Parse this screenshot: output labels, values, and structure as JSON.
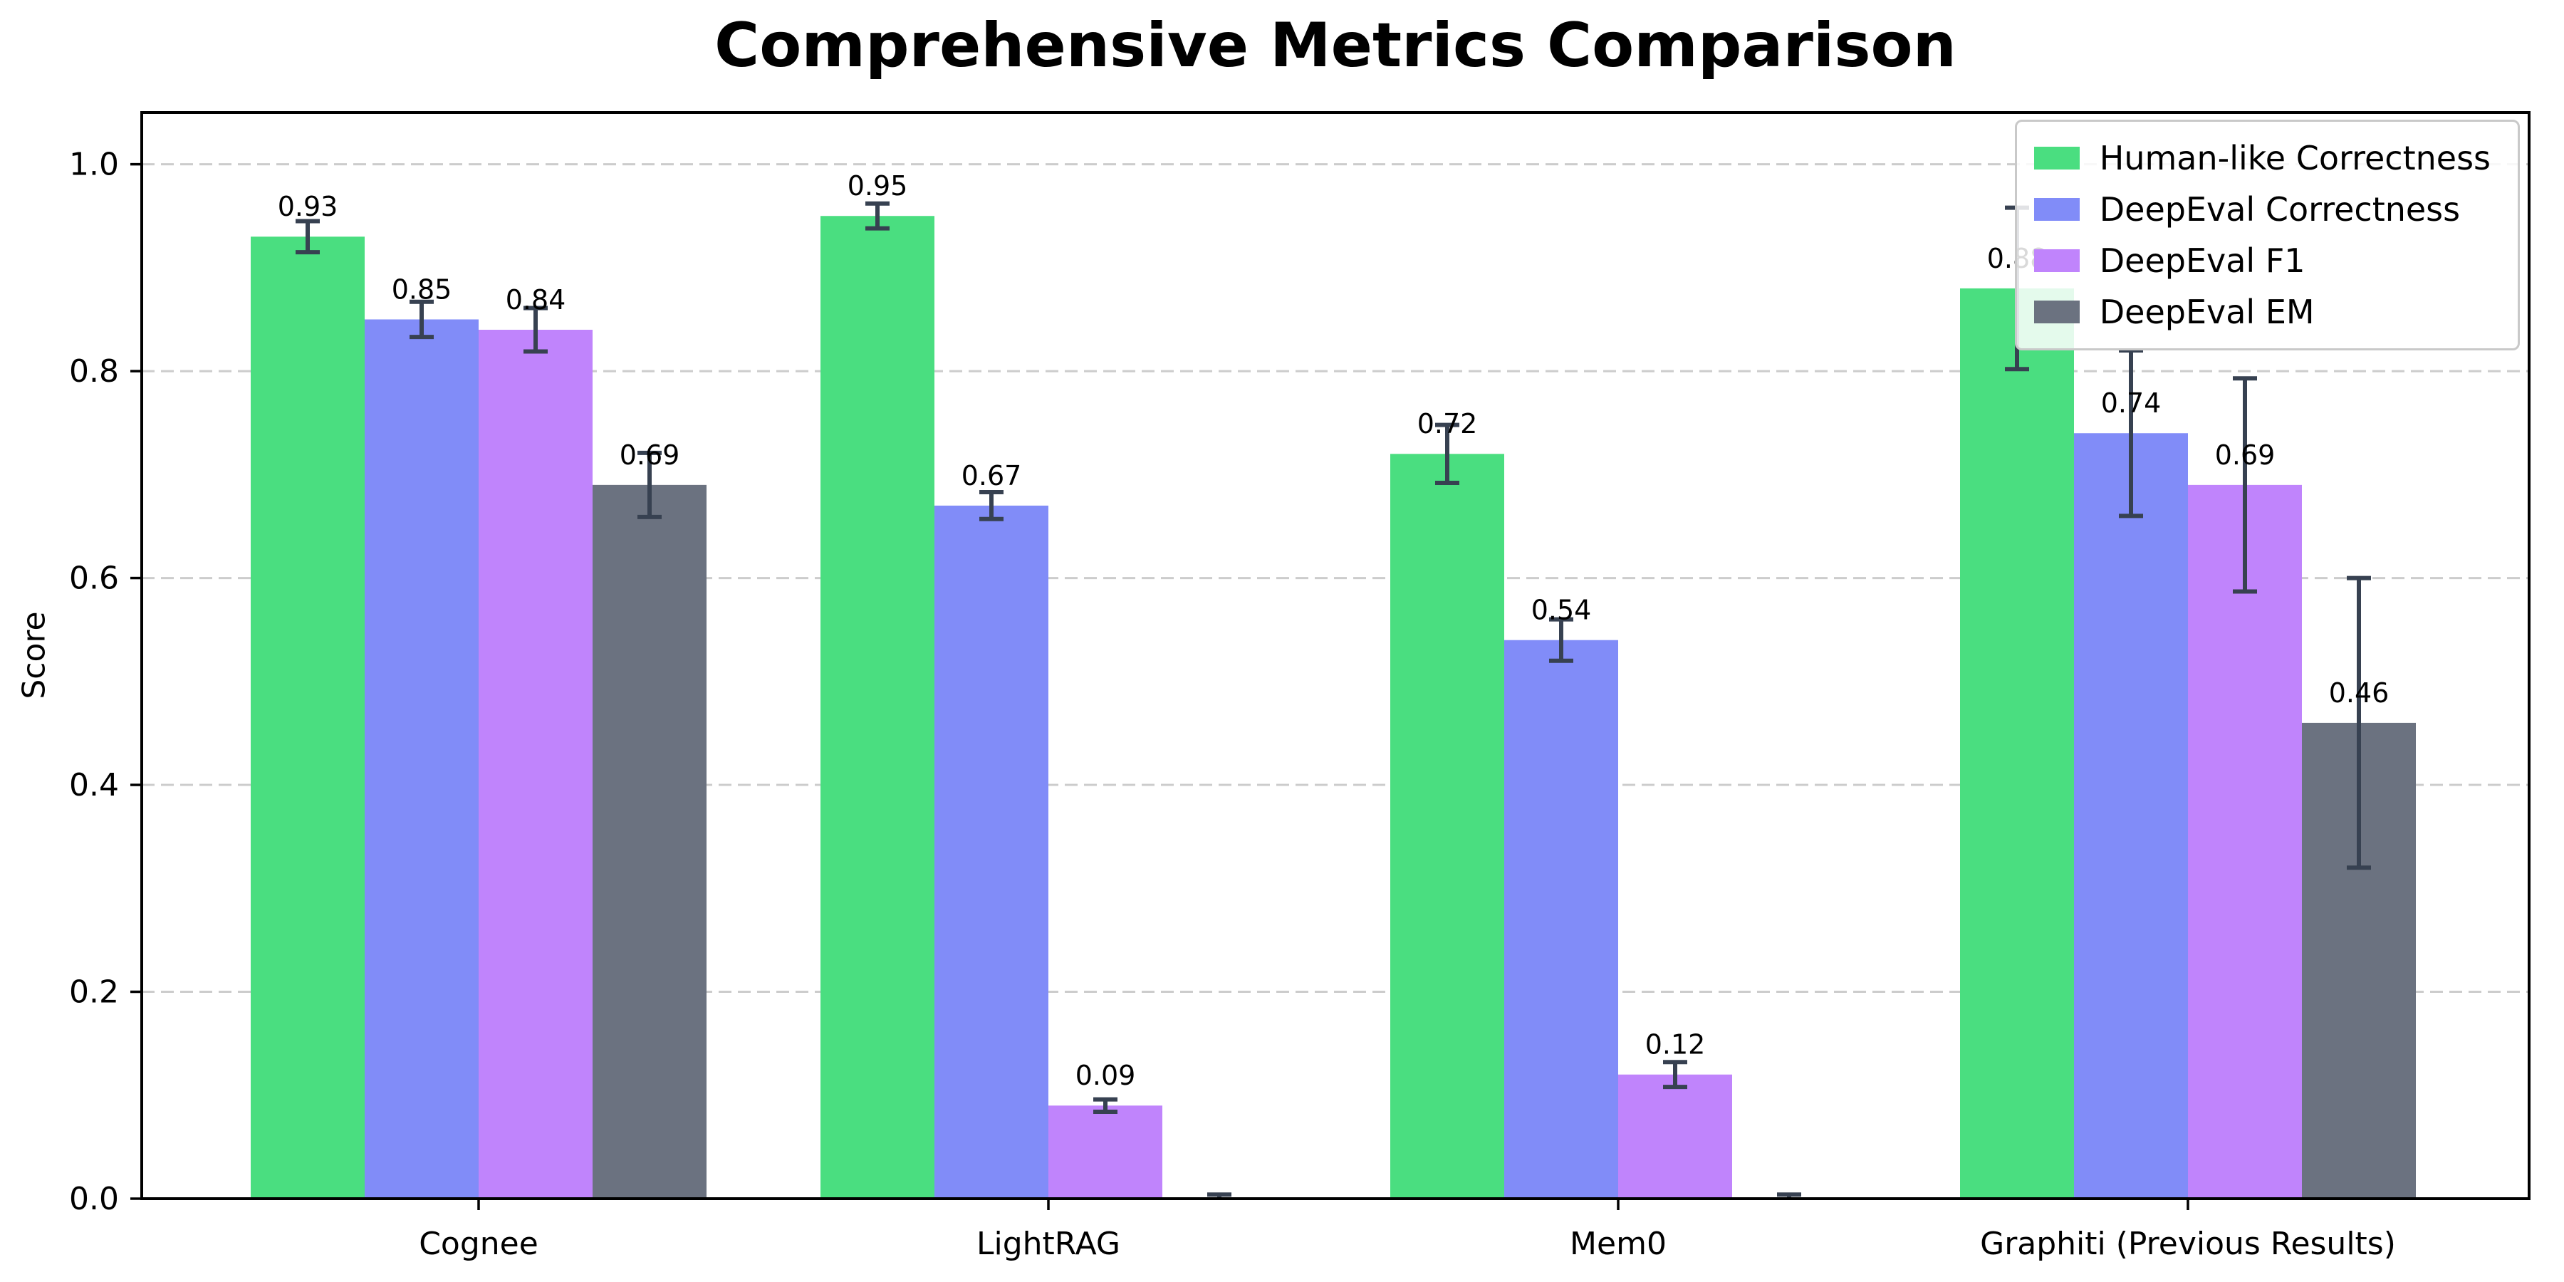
{
  "chart_data": {
    "type": "bar",
    "title": "Comprehensive Metrics Comparison",
    "xlabel": "",
    "ylabel": "Score",
    "categories": [
      "Cognee",
      "LightRAG",
      "Mem0",
      "Graphiti (Previous Results)"
    ],
    "series": [
      {
        "name": "Human-like Correctness",
        "color": "#4ade80",
        "values": [
          0.93,
          0.95,
          0.72,
          0.88
        ],
        "errors": [
          0.015,
          0.012,
          0.028,
          0.078
        ],
        "labels": [
          "0.93",
          "0.95",
          "0.72",
          "0.88"
        ]
      },
      {
        "name": "DeepEval Correctness",
        "color": "#818cf8",
        "values": [
          0.85,
          0.67,
          0.54,
          0.74
        ],
        "errors": [
          0.017,
          0.013,
          0.02,
          0.08
        ],
        "labels": [
          "0.85",
          "0.67",
          "0.54",
          "0.74"
        ]
      },
      {
        "name": "DeepEval F1",
        "color": "#c084fc",
        "values": [
          0.84,
          0.09,
          0.12,
          0.69
        ],
        "errors": [
          0.021,
          0.006,
          0.012,
          0.103
        ],
        "labels": [
          "0.84",
          "0.09",
          "0.12",
          "0.69"
        ]
      },
      {
        "name": "DeepEval EM",
        "color": "#6b7280",
        "values": [
          0.69,
          0.0,
          0.0,
          0.46
        ],
        "errors": [
          0.031,
          0.004,
          0.004,
          0.14
        ],
        "labels": [
          "0.69",
          "",
          "",
          "0.46"
        ]
      }
    ],
    "ylim": [
      0,
      1.05
    ],
    "yticks": [
      0.0,
      0.2,
      0.4,
      0.6,
      0.8,
      1.0
    ],
    "ytick_labels": [
      "0.0",
      "0.2",
      "0.4",
      "0.6",
      "0.8",
      "1.0"
    ],
    "grid": true,
    "grid_style": "dashed",
    "legend_position": "upper right",
    "axis_color": "#000000",
    "grid_color": "#cccccc",
    "error_bar_color": "#374151",
    "background_color": "#ffffff"
  }
}
